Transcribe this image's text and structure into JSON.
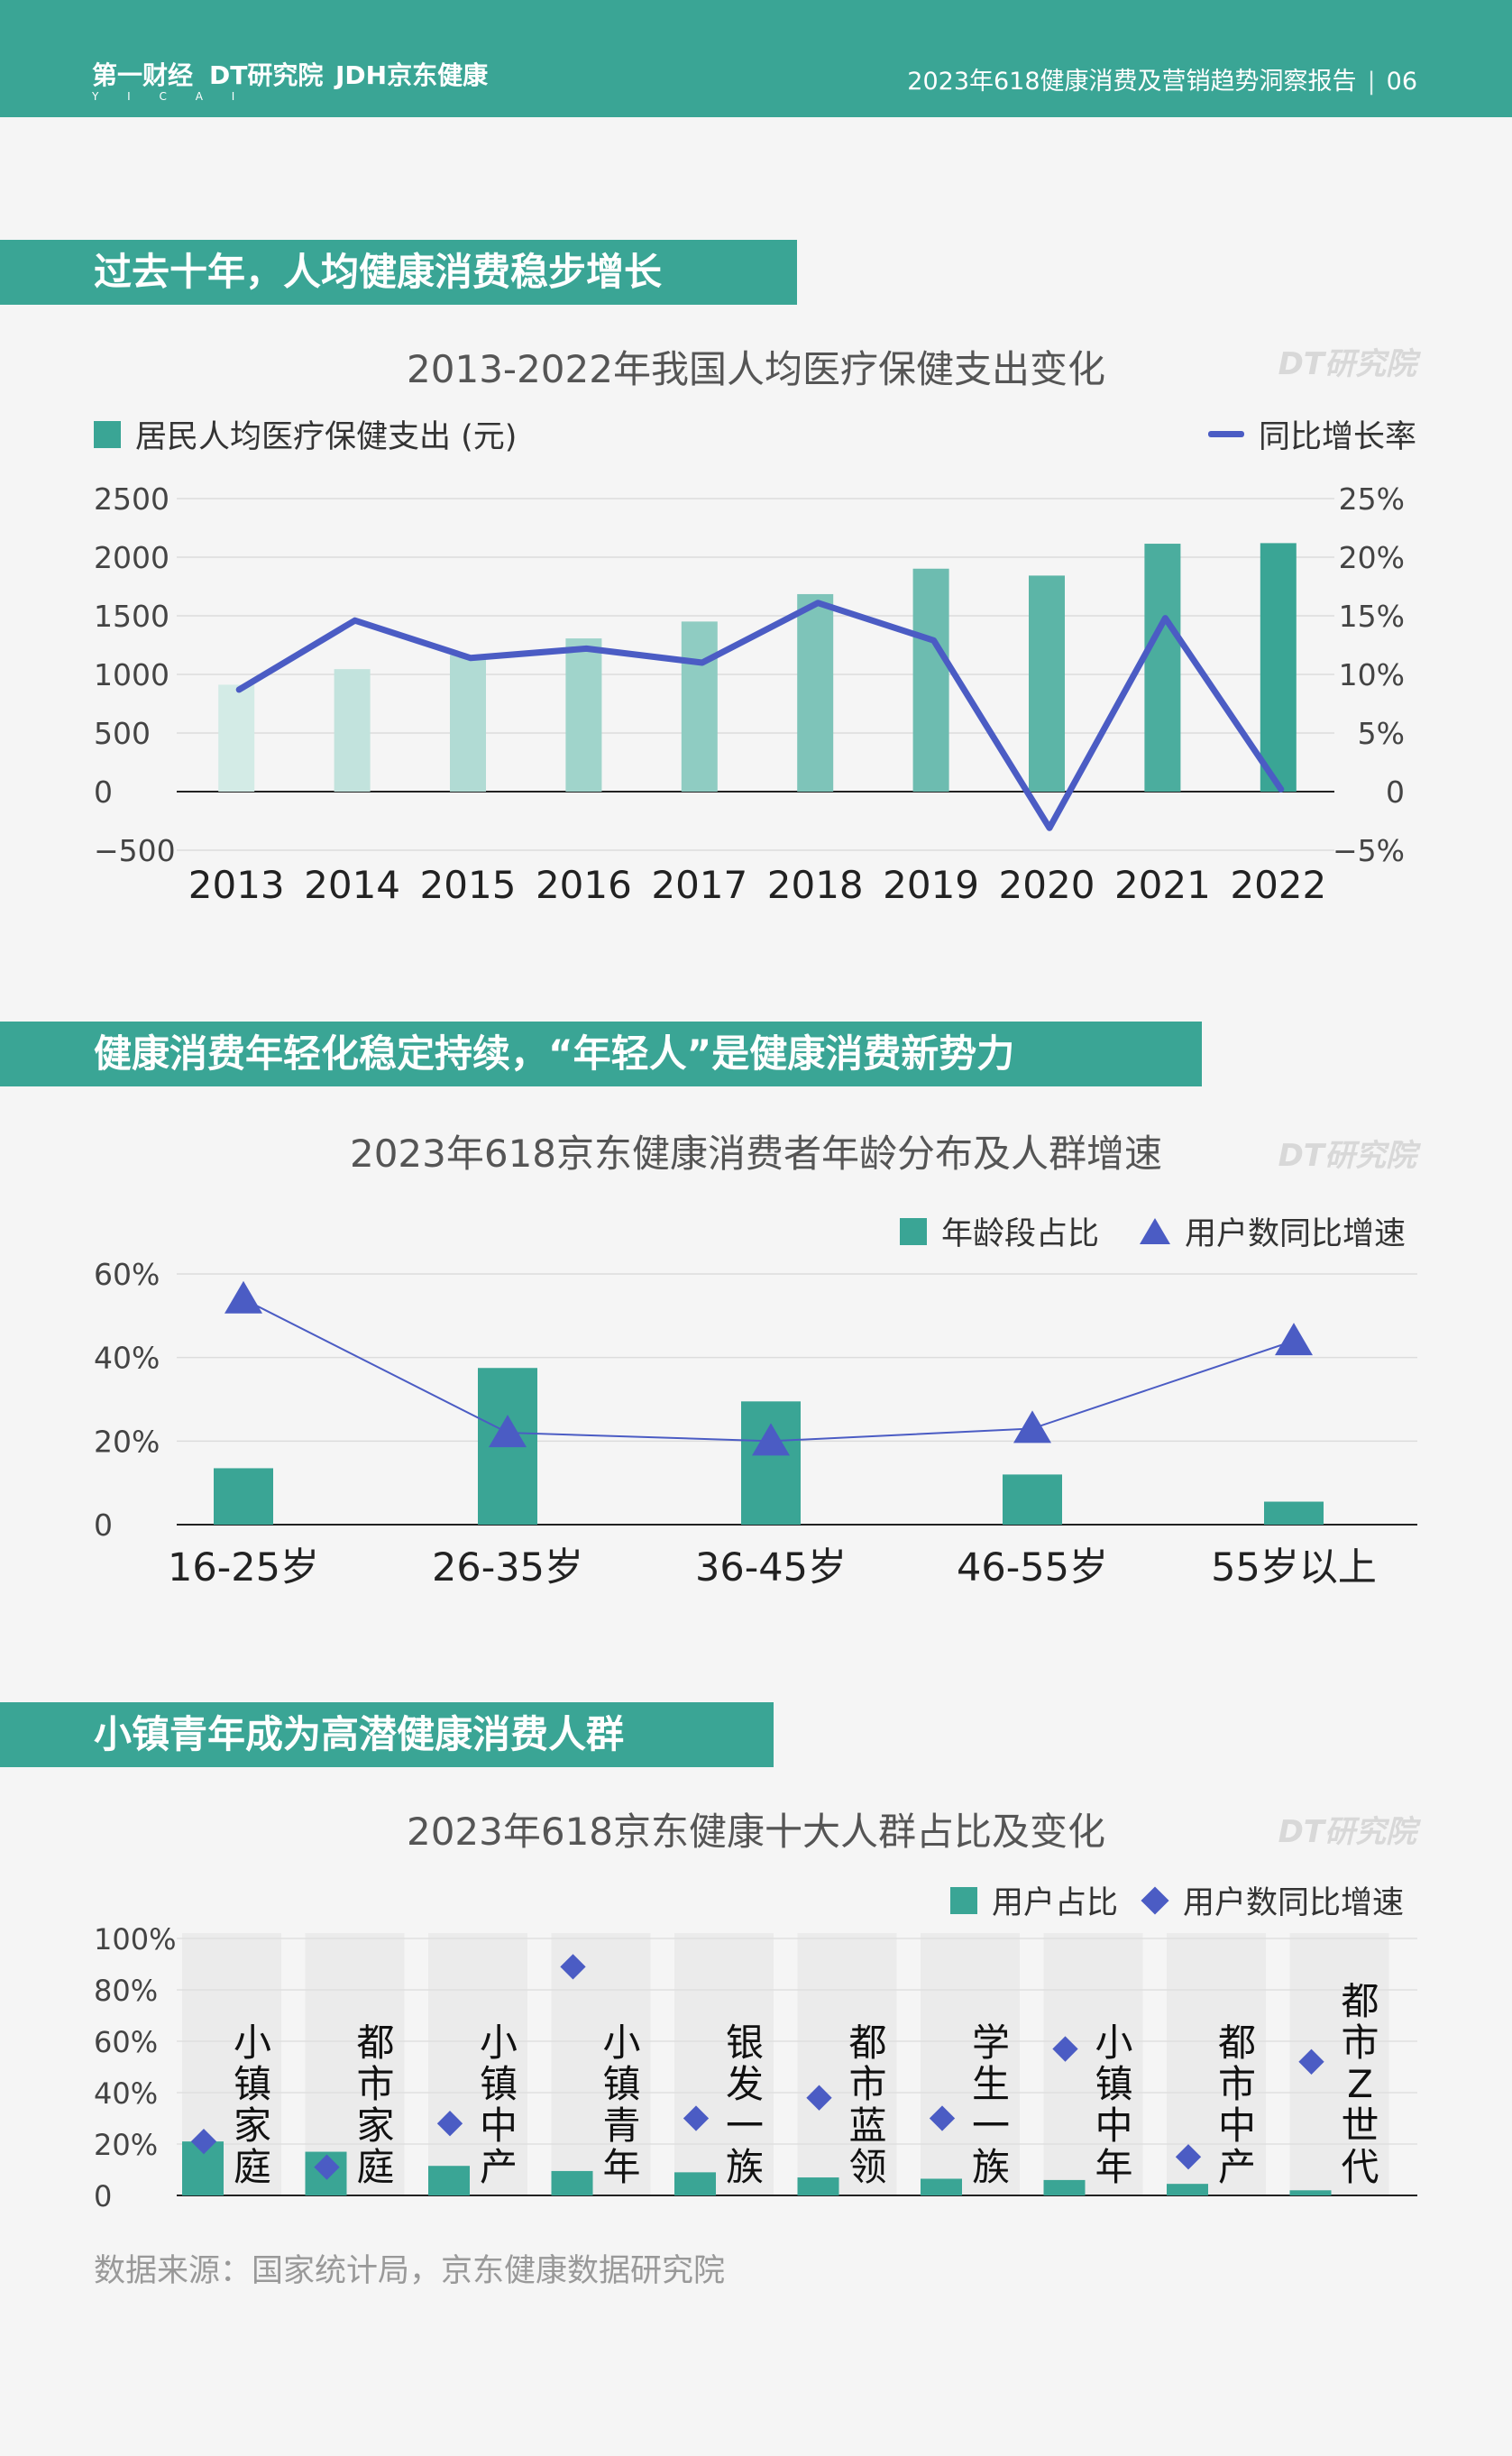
{
  "header": {
    "logos": [
      {
        "text": "第一财经",
        "sub": "Y I C A I"
      },
      {
        "text": "DT研究院"
      },
      {
        "text": "JDH京东健康"
      }
    ],
    "report_title": "2023年618健康消费及营销趋势洞察报告",
    "separator": "|",
    "page_number": "06"
  },
  "colors": {
    "brand": "#3aa595",
    "line": "#4b5cc4",
    "grid": "#dcdcdc",
    "col_band": "#ebebeb"
  },
  "sections": [
    {
      "banner": "过去十年，人均健康消费稳步增长",
      "chart_title": "2013-2022年我国人均医疗保健支出变化",
      "watermark": "DT研究院"
    },
    {
      "banner": "健康消费年轻化稳定持续，“年轻人”是健康消费新势力",
      "chart_title": "2023年618京东健康消费者年龄分布及人群增速",
      "watermark": "DT研究院"
    },
    {
      "banner": "小镇青年成为高潜健康消费人群",
      "chart_title": "2023年618京东健康十大人群占比及变化",
      "watermark": "DT研究院"
    }
  ],
  "chart_data": [
    {
      "type": "bar",
      "title": "2013-2022年我国人均医疗保健支出变化",
      "categories": [
        "2013",
        "2014",
        "2015",
        "2016",
        "2017",
        "2018",
        "2019",
        "2020",
        "2021",
        "2022"
      ],
      "series": [
        {
          "name": "居民人均医疗保健支出 (元)",
          "type": "bar",
          "axis": "left",
          "values": [
            912,
            1045,
            1165,
            1307,
            1451,
            1685,
            1902,
            1843,
            2115,
            2120
          ]
        },
        {
          "name": "同比增长率",
          "type": "line",
          "axis": "right",
          "values": [
            8.7,
            14.6,
            11.4,
            12.2,
            11.0,
            16.1,
            12.9,
            -3.1,
            14.8,
            0.2
          ]
        }
      ],
      "y_left": {
        "ticks": [
          "2500",
          "2000",
          "1500",
          "1000",
          "500",
          "0",
          "−500"
        ],
        "ylim": [
          -500,
          2500
        ]
      },
      "y_right": {
        "ticks": [
          "25%",
          "20%",
          "15%",
          "10%",
          "5%",
          "0",
          "−5%"
        ],
        "ylim": [
          -5,
          25
        ]
      },
      "grid": true
    },
    {
      "type": "bar",
      "title": "2023年618京东健康消费者年龄分布及人群增速",
      "categories": [
        "16-25岁",
        "26-35岁",
        "36-45岁",
        "46-55岁",
        "55岁以上"
      ],
      "series": [
        {
          "name": "年龄段占比",
          "type": "bar",
          "values": [
            13.5,
            37.5,
            29.5,
            12,
            5.5
          ]
        },
        {
          "name": "用户数同比增速",
          "type": "line-triangle",
          "values": [
            54,
            22,
            20,
            23,
            44
          ]
        }
      ],
      "y_ticks": [
        "60%",
        "40%",
        "20%",
        "0"
      ],
      "ylim": [
        0,
        60
      ],
      "grid": true
    },
    {
      "type": "bar",
      "title": "2023年618京东健康十大人群占比及变化",
      "categories": [
        "小镇家庭",
        "都市家庭",
        "小镇中产",
        "小镇青年",
        "银发一族",
        "都市蓝领",
        "学生一族",
        "小镇中年",
        "都市中产",
        "都市Z世代"
      ],
      "series": [
        {
          "name": "用户占比",
          "type": "bar",
          "values": [
            21,
            17,
            11.5,
            9.5,
            9,
            7,
            6.5,
            6,
            4.5,
            2
          ]
        },
        {
          "name": "用户数同比增速",
          "type": "scatter-diamond",
          "values": [
            21,
            11,
            28,
            89,
            30,
            38,
            30,
            57,
            15,
            52
          ]
        }
      ],
      "y_ticks": [
        "100%",
        "80%",
        "60%",
        "40%",
        "20%",
        "0"
      ],
      "ylim": [
        0,
        100
      ],
      "grid": true
    }
  ],
  "source": "数据来源：国家统计局，京东健康数据研究院"
}
